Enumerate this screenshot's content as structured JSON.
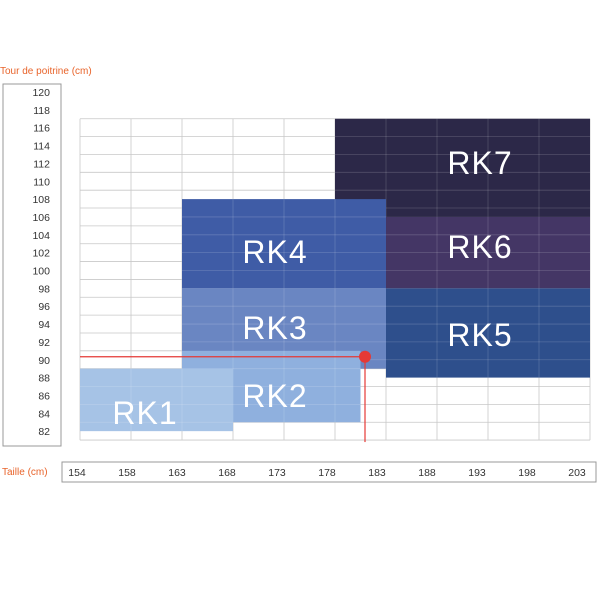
{
  "chart_data": {
    "type": "heatmap",
    "ylabel": "Tour de poitrine (cm)",
    "xlabel": "Taille (cm)",
    "y_ticks": [
      120,
      118,
      116,
      114,
      112,
      110,
      108,
      106,
      104,
      102,
      100,
      98,
      96,
      94,
      92,
      90,
      88,
      86,
      84,
      82
    ],
    "x_ticks": [
      154,
      158,
      163,
      168,
      173,
      178,
      183,
      188,
      193,
      198,
      203
    ],
    "zones": [
      {
        "label": "RK1",
        "x0": 0,
        "x1": 3,
        "y0": 82,
        "y1": 89,
        "color": "#a6c3e6"
      },
      {
        "label": "RK2",
        "x0": 2,
        "x1": 5.5,
        "y0": 83,
        "y1": 91,
        "color": "#8fb0de"
      },
      {
        "label": "RK3",
        "x0": 2,
        "x1": 6,
        "y0": 89,
        "y1": 98,
        "color": "#6a86c2"
      },
      {
        "label": "RK4",
        "x0": 2,
        "x1": 6,
        "y0": 98,
        "y1": 108,
        "color": "#3f5ca6"
      },
      {
        "label": "RK5",
        "x0": 6,
        "x1": 10,
        "y0": 88,
        "y1": 98,
        "color": "#2e4f8c"
      },
      {
        "label": "RK6",
        "x0": 6,
        "x1": 10,
        "y0": 98,
        "y1": 106,
        "color": "#443665"
      },
      {
        "label": "RK7",
        "x0": 5,
        "x1": 10,
        "y0": 106,
        "y1": 117,
        "color": "#2c2848"
      }
    ],
    "marker": {
      "x": 5.6,
      "y": 90,
      "color": "#e53935"
    },
    "grid": true
  }
}
